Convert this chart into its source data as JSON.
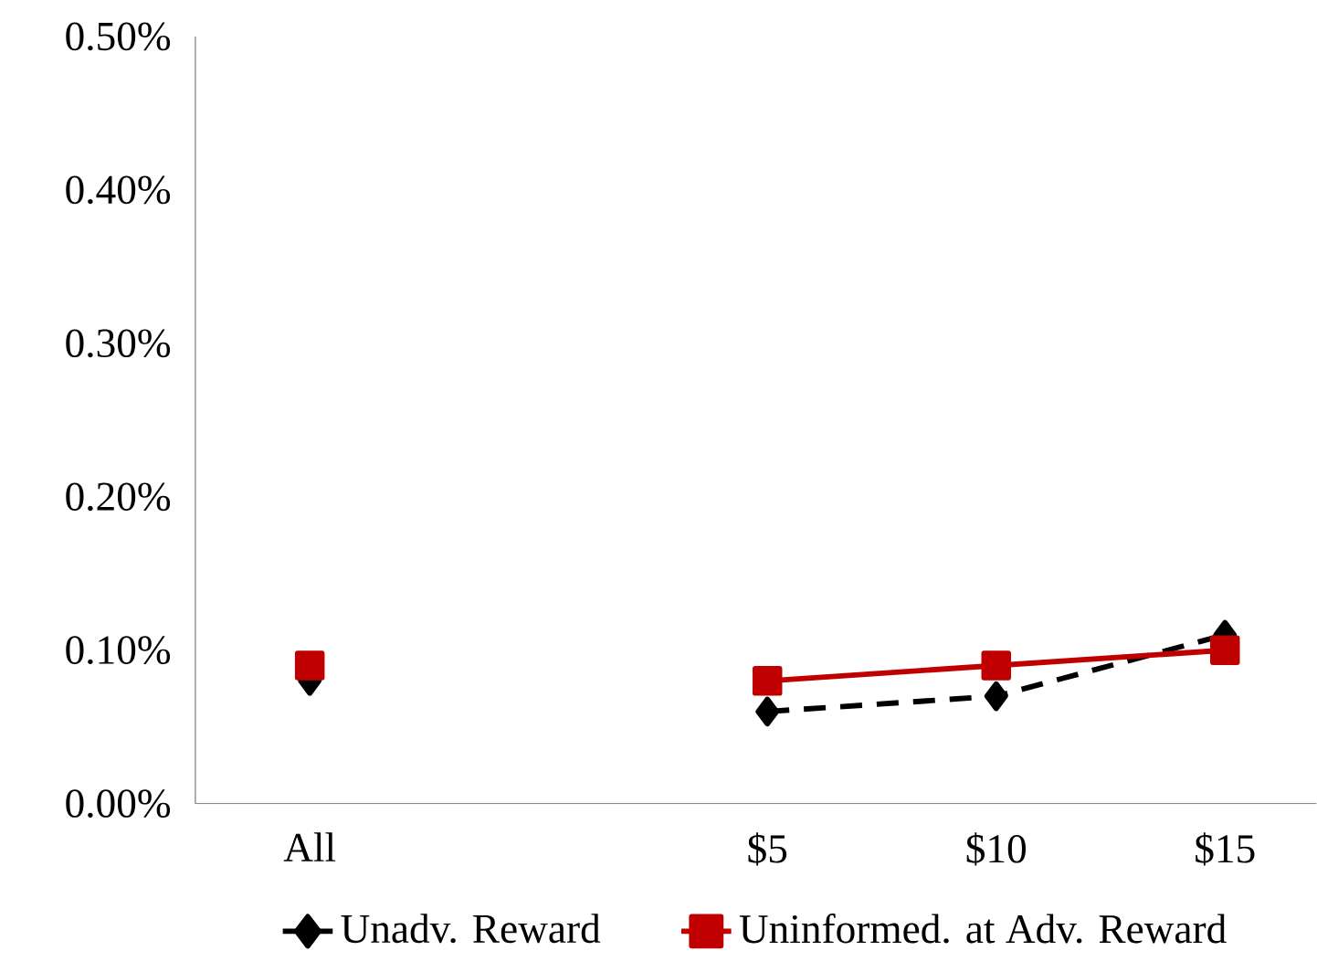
{
  "chart_data": {
    "type": "line",
    "categories": [
      "All",
      null,
      "$5",
      "$10",
      "$15"
    ],
    "series": [
      {
        "name": "Unadv. Reward",
        "color": "#000000",
        "values": [
          0.08,
          null,
          0.06,
          0.07,
          0.11
        ],
        "marker": "diamond",
        "line_style": "dashed"
      },
      {
        "name": "Uninformed. at Adv. Reward",
        "color": "#c00000",
        "values": [
          0.09,
          null,
          0.08,
          0.09,
          0.1
        ],
        "marker": "square",
        "line_style": "solid"
      }
    ],
    "ylim": [
      0,
      0.5
    ],
    "yticks": [
      {
        "value": 0,
        "label": "0.00%"
      },
      {
        "value": 0.1,
        "label": "0.10%"
      },
      {
        "value": 0.2,
        "label": "0.20%"
      },
      {
        "value": 0.3,
        "label": "0.30%"
      },
      {
        "value": 0.4,
        "label": "0.40%"
      },
      {
        "value": 0.5,
        "label": "0.50%"
      }
    ],
    "legend": "bottom"
  }
}
